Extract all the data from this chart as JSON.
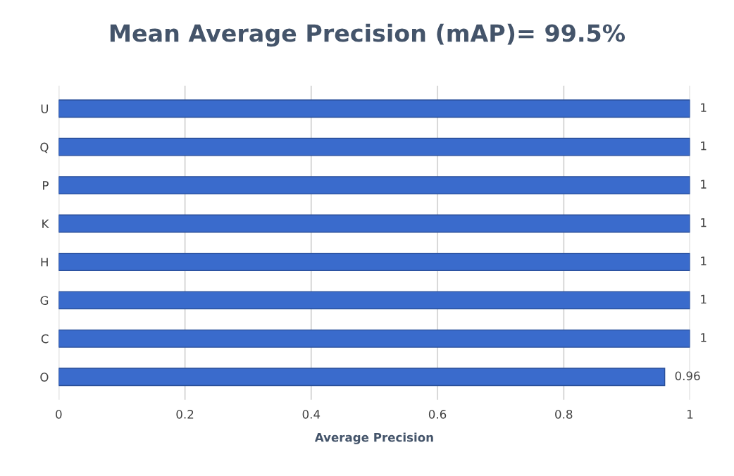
{
  "chart_data": {
    "type": "bar",
    "orientation": "horizontal",
    "title": "Mean Average Precision (mAP)= 99.5%",
    "xlabel": "Average Precision",
    "categories": [
      "U",
      "Q",
      "P",
      "K",
      "H",
      "G",
      "C",
      "O"
    ],
    "values": [
      1,
      1,
      1,
      1,
      1,
      1,
      1,
      0.96
    ],
    "color": "#3a6bcc",
    "xlim": [
      0,
      1
    ],
    "xticks": [
      0,
      0.2,
      0.4,
      0.6,
      0.8,
      1
    ],
    "grid": "x",
    "data_labels": true
  }
}
